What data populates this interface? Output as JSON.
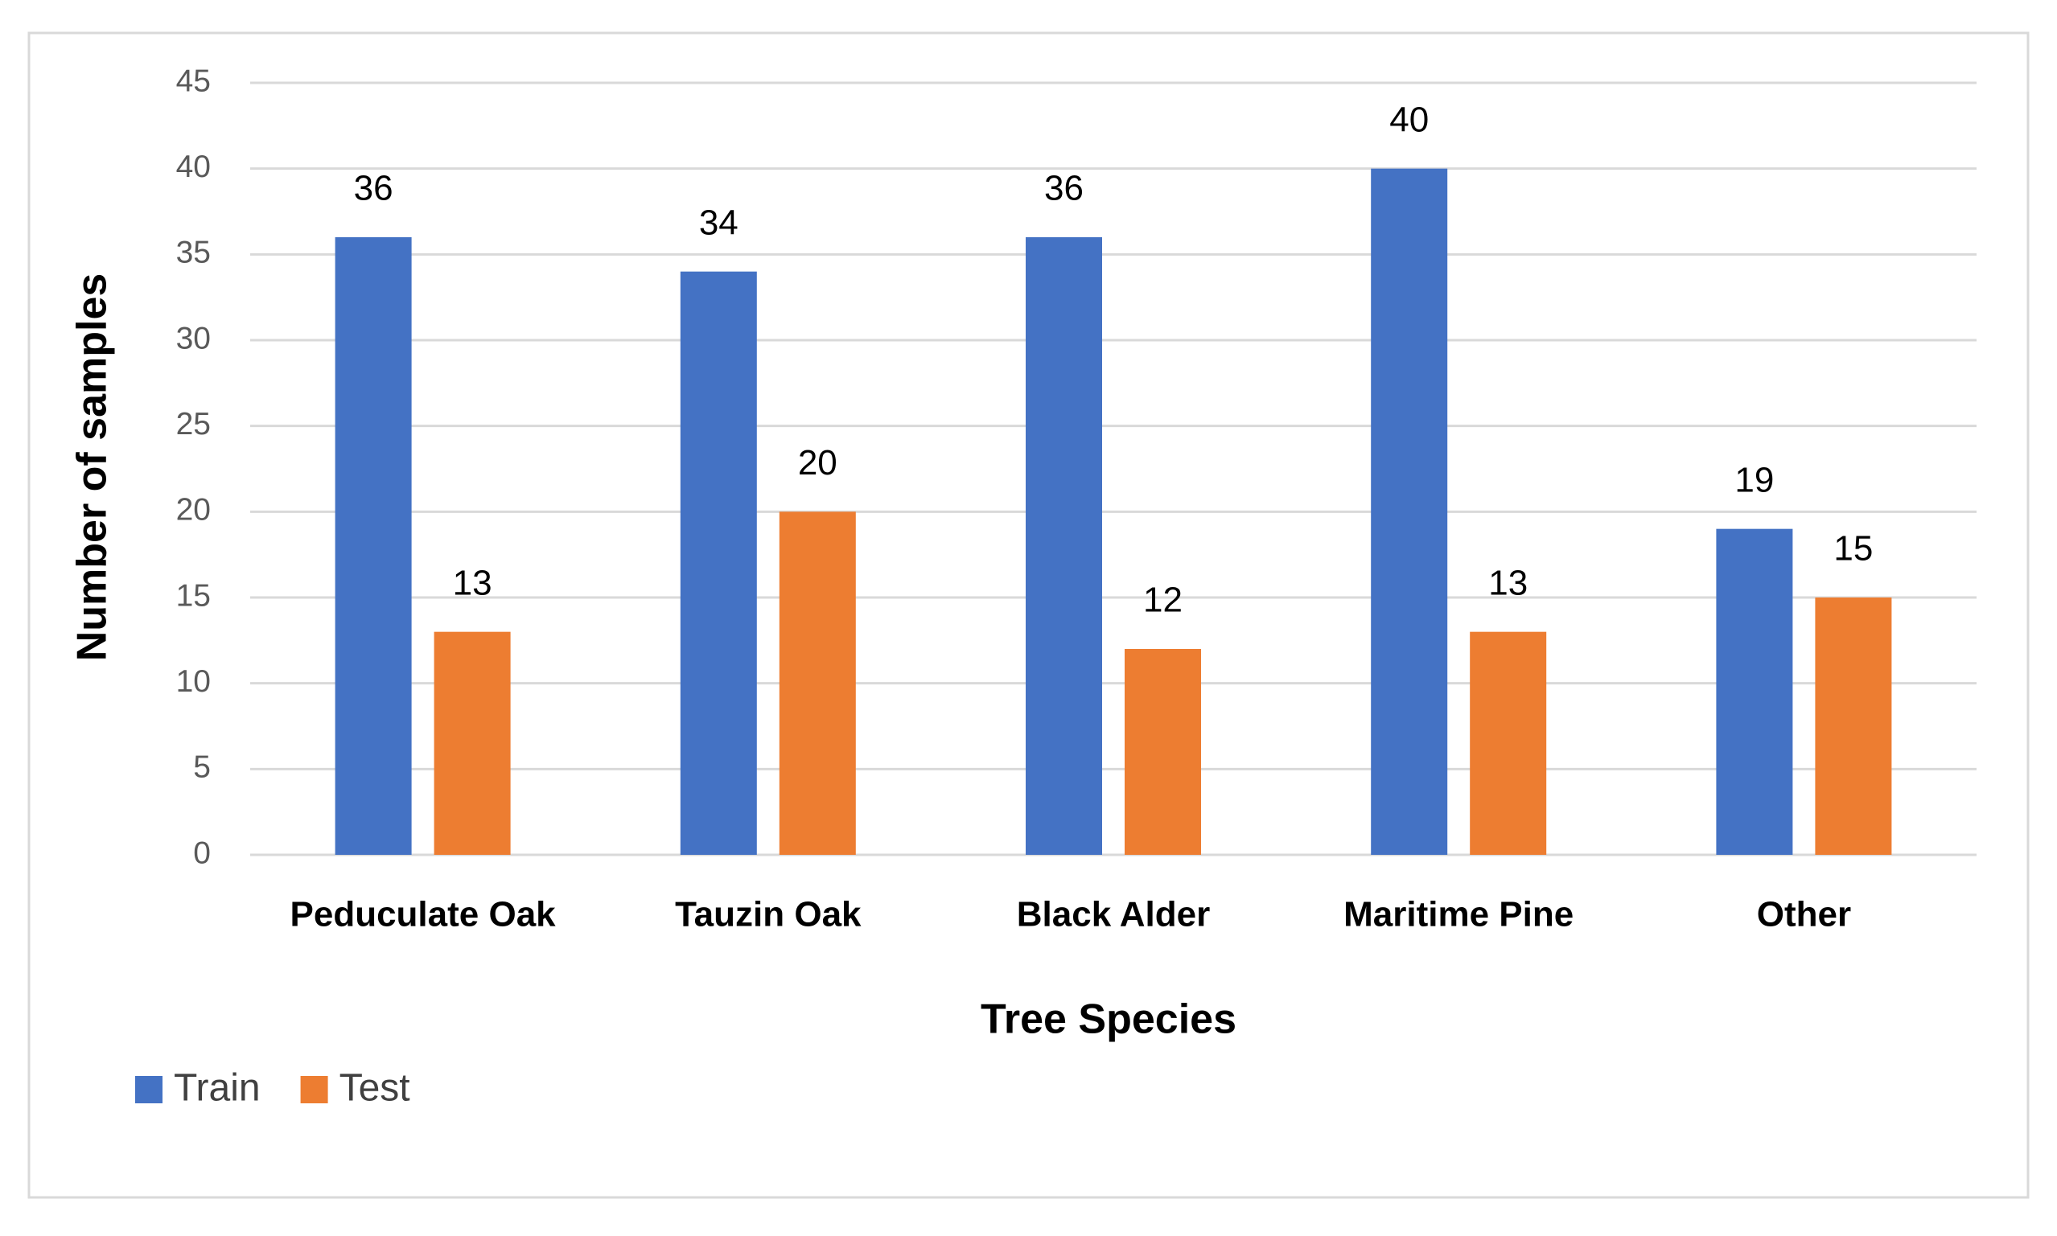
{
  "chart_data": {
    "type": "bar",
    "categories": [
      "Peduculate Oak",
      "Tauzin Oak",
      "Black Alder",
      "Maritime Pine",
      "Other"
    ],
    "series": [
      {
        "name": "Train",
        "color": "#4472c4",
        "values": [
          36,
          34,
          36,
          40,
          19
        ]
      },
      {
        "name": "Test",
        "color": "#ed7d31",
        "values": [
          13,
          20,
          12,
          13,
          15
        ]
      }
    ],
    "x_label": "Tree Species",
    "y_label": "Number of samples",
    "ylim": [
      0,
      45
    ],
    "yticks": [
      0,
      5,
      10,
      15,
      20,
      25,
      30,
      35,
      40,
      45
    ],
    "grid": true,
    "legend": "bottom-left"
  }
}
